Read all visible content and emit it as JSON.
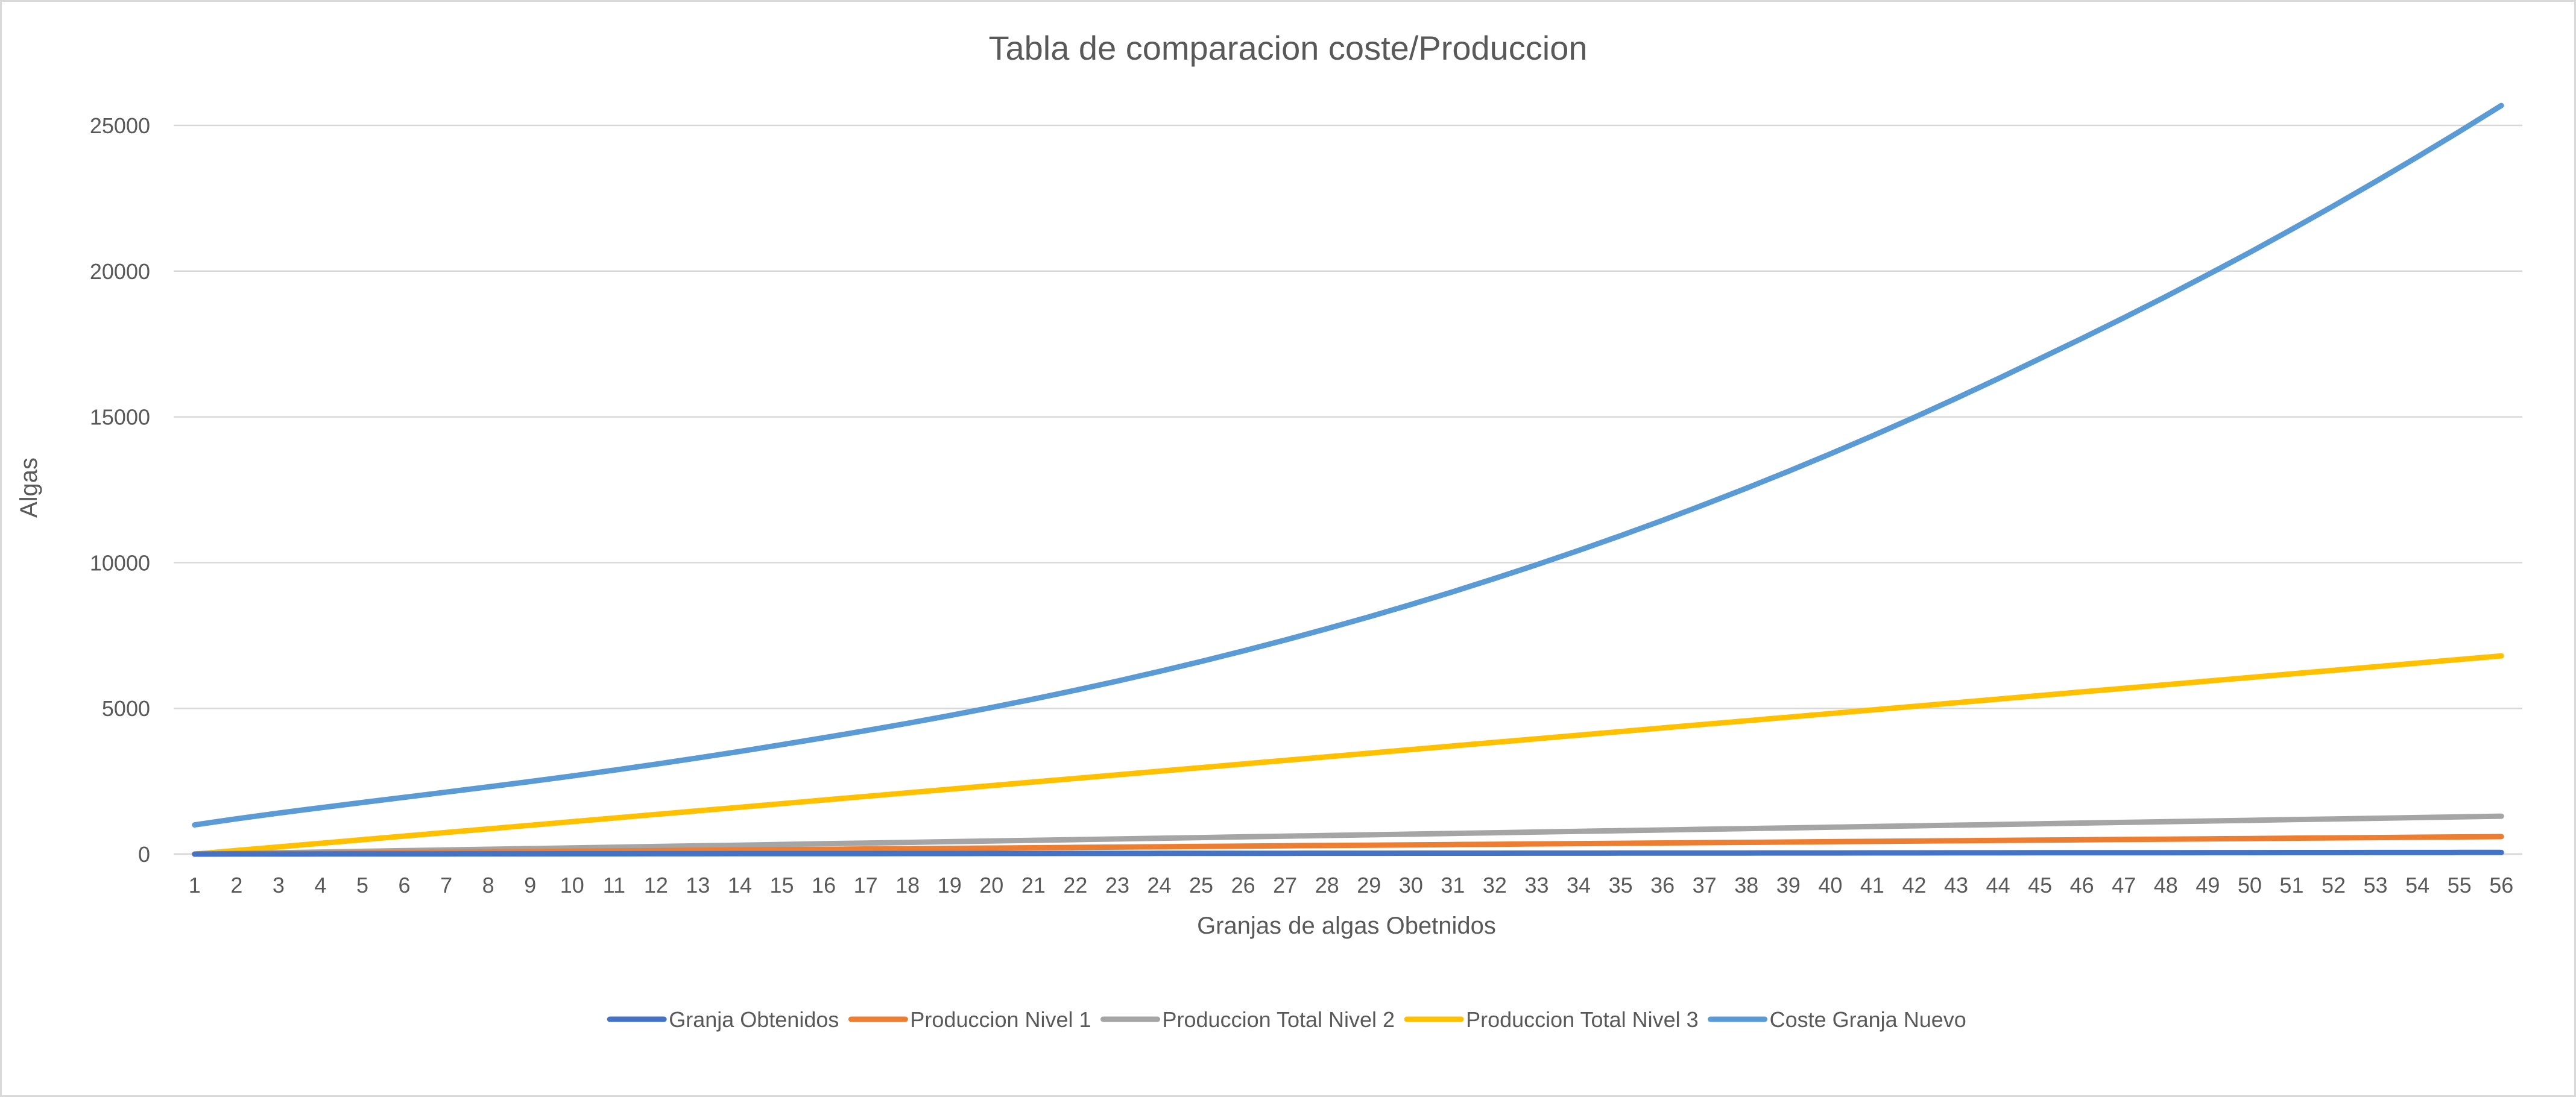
{
  "chart_data": {
    "type": "line",
    "title": "Tabla de comparacion coste/Produccion",
    "xlabel": "Granjas de algas Obetnidos",
    "ylabel": "Algas",
    "x": [
      1,
      2,
      3,
      4,
      5,
      6,
      7,
      8,
      9,
      10,
      11,
      12,
      13,
      14,
      15,
      16,
      17,
      18,
      19,
      20,
      21,
      22,
      23,
      24,
      25,
      26,
      27,
      28,
      29,
      30,
      31,
      32,
      33,
      34,
      35,
      36,
      37,
      38,
      39,
      40,
      41,
      42,
      43,
      44,
      45,
      46,
      47,
      48,
      49,
      50,
      51,
      52,
      53,
      54,
      55,
      56
    ],
    "ylim": [
      0,
      25000
    ],
    "yticks": [
      0,
      5000,
      10000,
      15000,
      20000,
      25000
    ],
    "grid": true,
    "legend_position": "bottom",
    "series": [
      {
        "name": "Granja Obtenidos",
        "color": "#4472c4",
        "values": [
          1,
          2,
          3,
          4,
          5,
          6,
          7,
          8,
          9,
          10,
          11,
          12,
          13,
          14,
          15,
          16,
          17,
          18,
          19,
          20,
          21,
          22,
          23,
          24,
          25,
          26,
          27,
          28,
          29,
          30,
          31,
          32,
          33,
          34,
          35,
          36,
          37,
          38,
          39,
          40,
          41,
          42,
          43,
          44,
          45,
          46,
          47,
          48,
          49,
          50,
          51,
          52,
          53,
          54,
          55,
          56
        ]
      },
      {
        "name": "Produccion Nivel 1",
        "color": "#ed7d31",
        "values": [
          0,
          11,
          22,
          33,
          44,
          55,
          66,
          76,
          87,
          98,
          109,
          120,
          131,
          142,
          153,
          164,
          175,
          185,
          196,
          207,
          218,
          229,
          240,
          251,
          262,
          273,
          284,
          295,
          305,
          316,
          327,
          338,
          349,
          360,
          371,
          382,
          393,
          404,
          414,
          425,
          436,
          447,
          458,
          469,
          480,
          491,
          502,
          513,
          524,
          534,
          545,
          556,
          567,
          578,
          589,
          600
        ]
      },
      {
        "name": "Produccion Total Nivel 2",
        "color": "#a5a5a5",
        "values": [
          0,
          24,
          47,
          71,
          95,
          118,
          142,
          165,
          189,
          213,
          236,
          260,
          284,
          307,
          331,
          355,
          378,
          402,
          425,
          449,
          473,
          496,
          520,
          544,
          567,
          591,
          615,
          638,
          662,
          685,
          709,
          733,
          756,
          780,
          804,
          827,
          851,
          875,
          898,
          922,
          945,
          969,
          993,
          1016,
          1040,
          1064,
          1087,
          1111,
          1135,
          1158,
          1182,
          1205,
          1229,
          1253,
          1276,
          1300
        ]
      },
      {
        "name": "Produccion Total Nivel 3",
        "color": "#ffc000",
        "values": [
          0,
          124,
          247,
          371,
          495,
          618,
          742,
          865,
          989,
          1113,
          1236,
          1360,
          1484,
          1607,
          1731,
          1855,
          1978,
          2102,
          2225,
          2349,
          2473,
          2596,
          2720,
          2844,
          2967,
          3091,
          3215,
          3338,
          3462,
          3585,
          3709,
          3833,
          3956,
          4080,
          4204,
          4327,
          4451,
          4575,
          4698,
          4822,
          4945,
          5069,
          5193,
          5316,
          5440,
          5564,
          5687,
          5811,
          5935,
          6058,
          6182,
          6305,
          6429,
          6553,
          6676,
          6800
        ]
      },
      {
        "name": "Coste Granja Nuevo",
        "color": "#5b9bd5",
        "values": [
          1000,
          1211,
          1406,
          1591,
          1770,
          1947,
          2125,
          2305,
          2489,
          2680,
          2878,
          3085,
          3300,
          3522,
          3755,
          3990,
          4234,
          4488,
          4752,
          5029,
          5318,
          5620,
          5935,
          6265,
          6609,
          6968,
          7343,
          7733,
          8139,
          8561,
          9000,
          9456,
          9928,
          10418,
          10925,
          11450,
          11993,
          12554,
          13133,
          13730,
          14346,
          14981,
          15635,
          16308,
          16999,
          17690,
          18400,
          19128,
          19875,
          20640,
          21430,
          22240,
          23070,
          23920,
          24790,
          25680
        ]
      }
    ]
  }
}
